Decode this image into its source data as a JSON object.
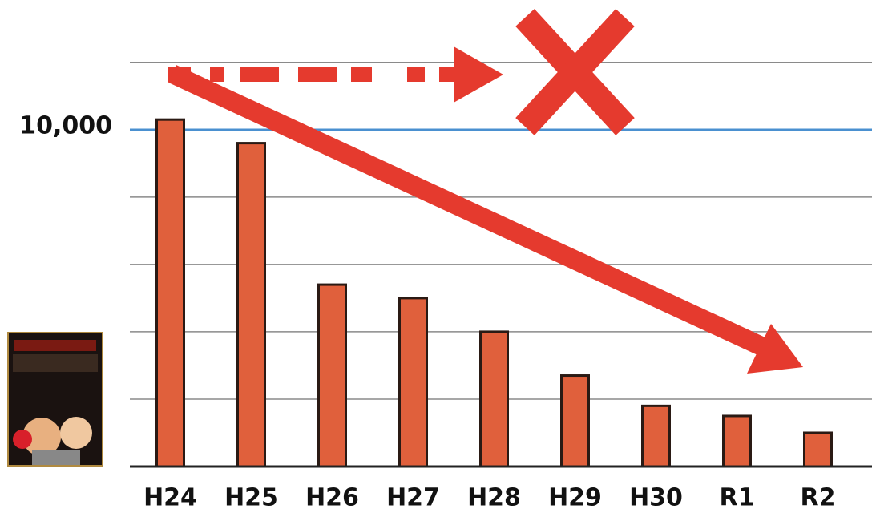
{
  "chart_data": {
    "type": "bar",
    "categories": [
      "H24",
      "H25",
      "H26",
      "H27",
      "H28",
      "H29",
      "H30",
      "R1",
      "R2"
    ],
    "values": [
      10300,
      9600,
      5400,
      5000,
      4000,
      2700,
      1800,
      1500,
      1000
    ],
    "color": "#e0603c",
    "ylim": [
      0,
      13850
    ],
    "yticks": [
      {
        "value": 10000,
        "label": "10,000"
      }
    ],
    "gridlines": [
      2000,
      4000,
      6000,
      8000,
      12000
    ],
    "grid": true
  }
}
